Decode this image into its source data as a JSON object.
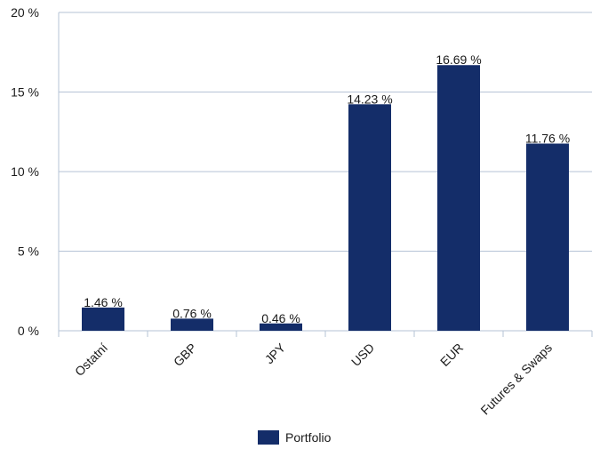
{
  "chart_data": {
    "type": "bar",
    "categories": [
      "Ostatní",
      "GBP",
      "JPY",
      "USD",
      "EUR",
      "Futures & Swaps"
    ],
    "series": [
      {
        "name": "Portfolio",
        "values": [
          1.46,
          0.76,
          0.46,
          14.23,
          16.69,
          11.76
        ],
        "color": "#142d69"
      }
    ],
    "data_labels": [
      "1.46 %",
      "0.76 %",
      "0.46 %",
      "14.23 %",
      "16.69 %",
      "11.76 %"
    ],
    "y_ticks": [
      "0 %",
      "5 %",
      "10 %",
      "15 %",
      "20 %"
    ],
    "ylim": [
      0,
      20
    ],
    "grid": true,
    "legend_position": "bottom"
  },
  "colors": {
    "bar": "#142d69",
    "grid": "#b6c3d6",
    "text": "#1a1a1a"
  }
}
